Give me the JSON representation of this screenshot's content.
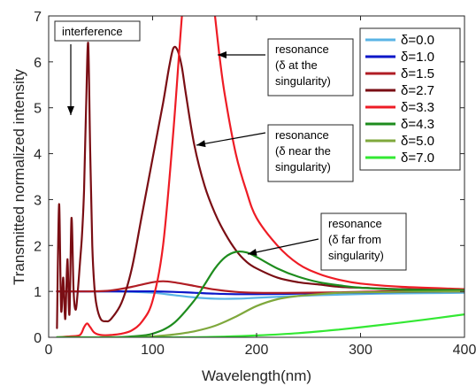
{
  "chart_data": {
    "type": "line",
    "title": "",
    "xlabel": "Wavelength(nm)",
    "ylabel": "Transmitted normalized intensity",
    "xlim": [
      0,
      400
    ],
    "ylim": [
      0,
      7
    ],
    "xticks": [
      0,
      100,
      200,
      300,
      400
    ],
    "yticks": [
      0,
      1,
      2,
      3,
      4,
      5,
      6,
      7
    ],
    "grid": false,
    "legend_position": "top-right",
    "series": [
      {
        "name": "δ=0.0",
        "color": "#5AB4E5",
        "x": [
          8,
          40,
          60,
          80,
          100,
          120,
          140,
          160,
          180,
          200,
          240,
          280,
          320,
          360,
          400
        ],
        "y": [
          1.0,
          1.0,
          1.0,
          0.99,
          0.97,
          0.92,
          0.87,
          0.84,
          0.84,
          0.86,
          0.9,
          0.93,
          0.95,
          0.96,
          0.97
        ]
      },
      {
        "name": "δ=1.0",
        "color": "#0B16C8",
        "x": [
          8,
          40,
          60,
          80,
          100,
          120,
          140,
          160,
          180,
          200,
          240,
          280,
          320,
          360,
          400
        ],
        "y": [
          1.0,
          1.0,
          1.0,
          1.0,
          1.0,
          0.99,
          0.97,
          0.95,
          0.94,
          0.94,
          0.95,
          0.97,
          0.98,
          0.99,
          1.0
        ]
      },
      {
        "name": "δ=1.5",
        "color": "#B01D24",
        "x": [
          8,
          20,
          40,
          60,
          80,
          100,
          110,
          120,
          140,
          160,
          180,
          200,
          240,
          280,
          320,
          360,
          400
        ],
        "y": [
          1.0,
          1.0,
          1.0,
          1.02,
          1.1,
          1.2,
          1.22,
          1.2,
          1.12,
          1.04,
          0.99,
          0.97,
          0.97,
          0.98,
          1.0,
          1.0,
          1.0
        ]
      },
      {
        "name": "δ=2.7",
        "color": "#7A0E14",
        "x": [
          8,
          10,
          12,
          14,
          16,
          18,
          20,
          22,
          24,
          26,
          28,
          30,
          32,
          34,
          36,
          38,
          40,
          42,
          44,
          46,
          50,
          55,
          60,
          70,
          80,
          90,
          100,
          110,
          116,
          120,
          124,
          128,
          132,
          140,
          150,
          160,
          170,
          180,
          190,
          200,
          220,
          240,
          260,
          280,
          300,
          340,
          400
        ],
        "y": [
          0.2,
          2.9,
          0.6,
          1.3,
          0.4,
          1.7,
          0.5,
          2.6,
          1.0,
          0.6,
          1.0,
          1.6,
          2.2,
          3.2,
          5.0,
          6.4,
          4.0,
          2.0,
          1.1,
          0.7,
          0.4,
          0.35,
          0.4,
          0.75,
          1.5,
          2.7,
          3.9,
          5.1,
          5.9,
          6.3,
          6.25,
          5.9,
          5.3,
          4.2,
          3.3,
          2.7,
          2.25,
          1.9,
          1.65,
          1.5,
          1.3,
          1.2,
          1.15,
          1.1,
          1.08,
          1.05,
          1.03
        ]
      },
      {
        "name": "δ=3.3",
        "color": "#EE1C25",
        "x": [
          8,
          20,
          30,
          34,
          37,
          40,
          44,
          50,
          60,
          70,
          80,
          90,
          100,
          110,
          120,
          130,
          140,
          150,
          160,
          165,
          170,
          180,
          190,
          200,
          220,
          240,
          260,
          280,
          300,
          340,
          400
        ],
        "y": [
          0.0,
          0.02,
          0.05,
          0.22,
          0.3,
          0.22,
          0.1,
          0.05,
          0.05,
          0.08,
          0.15,
          0.35,
          0.8,
          2.0,
          4.5,
          7.5,
          9.5,
          9.0,
          7.0,
          6.0,
          5.2,
          4.0,
          3.2,
          2.6,
          2.0,
          1.6,
          1.38,
          1.25,
          1.17,
          1.1,
          1.05
        ]
      },
      {
        "name": "δ=4.3",
        "color": "#1E8C1E",
        "x": [
          8,
          60,
          80,
          100,
          120,
          140,
          150,
          160,
          170,
          180,
          190,
          200,
          220,
          240,
          260,
          280,
          300,
          340,
          400
        ],
        "y": [
          0.0,
          0.0,
          0.02,
          0.08,
          0.3,
          0.8,
          1.15,
          1.5,
          1.75,
          1.86,
          1.85,
          1.75,
          1.5,
          1.32,
          1.2,
          1.13,
          1.08,
          1.04,
          1.03
        ]
      },
      {
        "name": "δ=5.0",
        "color": "#7FA83C",
        "x": [
          8,
          80,
          100,
          120,
          140,
          160,
          180,
          200,
          220,
          240,
          260,
          280,
          300,
          340,
          400
        ],
        "y": [
          0.0,
          0.0,
          0.02,
          0.06,
          0.13,
          0.25,
          0.45,
          0.68,
          0.83,
          0.9,
          0.94,
          0.97,
          0.98,
          0.99,
          1.0
        ]
      },
      {
        "name": "δ=7.0",
        "color": "#33E833",
        "x": [
          8,
          120,
          160,
          200,
          240,
          280,
          320,
          360,
          400
        ],
        "y": [
          0.0,
          0.0,
          0.01,
          0.04,
          0.09,
          0.17,
          0.27,
          0.38,
          0.5
        ]
      }
    ],
    "annotations": [
      {
        "lines": [
          "interference"
        ]
      },
      {
        "lines": [
          "resonance",
          "(δ at the",
          "singularity)"
        ]
      },
      {
        "lines": [
          "resonance",
          "(δ near the",
          "singularity)"
        ]
      },
      {
        "lines": [
          "resonance",
          "(δ far from",
          "singularity)"
        ]
      }
    ]
  }
}
